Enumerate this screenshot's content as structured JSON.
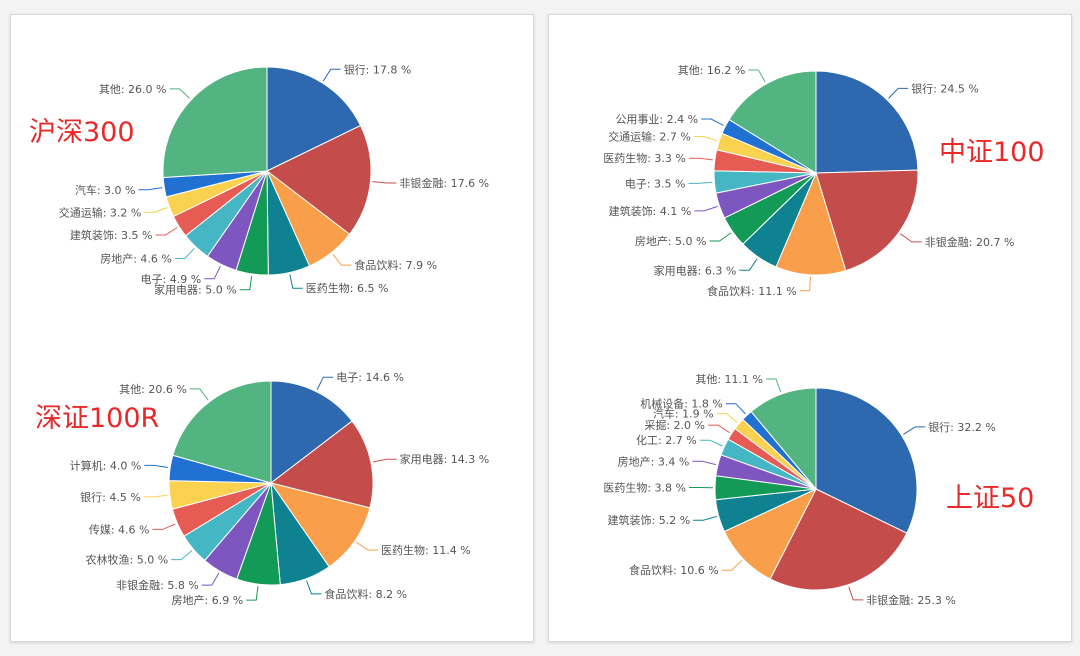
{
  "colors": [
    "#2e69b0",
    "#c44d4b",
    "#f99f4b",
    "#0e8291",
    "#139a56",
    "#7d56c0",
    "#45b6c4",
    "#e65c55",
    "#fbd150",
    "#2171d3"
  ],
  "other_color": "#52b481",
  "chart_data": [
    {
      "type": "pie",
      "title": "沪深300",
      "labels": [
        "银行",
        "非银金融",
        "食品饮料",
        "医药生物",
        "家用电器",
        "电子",
        "房地产",
        "建筑装饰",
        "交通运输",
        "汽车",
        "其他"
      ],
      "values": [
        17.8,
        17.6,
        7.9,
        6.5,
        5.0,
        4.9,
        4.6,
        3.5,
        3.2,
        3.0,
        26.0
      ],
      "value_labels": [
        "银行: 17.8 %",
        "非银金融: 17.6 %",
        "食品饮料: 7.9 %",
        "医药生物: 6.5 %",
        "家用电器: 5.0 %",
        "电子: 4.9 %",
        "房地产: 4.6 %",
        "建筑装饰: 3.5 %",
        "交通运输: 3.2 %",
        "汽车: 3.0 %",
        "其他: 26.0 %"
      ]
    },
    {
      "type": "pie",
      "title": "中证100",
      "labels": [
        "银行",
        "非银金融",
        "食品饮料",
        "家用电器",
        "房地产",
        "建筑装饰",
        "电子",
        "医药生物",
        "交通运输",
        "公用事业",
        "其他"
      ],
      "values": [
        24.5,
        20.7,
        11.1,
        6.3,
        5.0,
        4.1,
        3.5,
        3.3,
        2.7,
        2.4,
        16.2
      ],
      "value_labels": [
        "银行: 24.5 %",
        "非银金融: 20.7 %",
        "食品饮料: 11.1 %",
        "家用电器: 6.3 %",
        "房地产: 5.0 %",
        "建筑装饰: 4.1 %",
        "电子: 3.5 %",
        "医药生物: 3.3 %",
        "交通运输: 2.7 %",
        "公用事业: 2.4 %",
        "其他: 16.2 %"
      ]
    },
    {
      "type": "pie",
      "title": "深证100R",
      "labels": [
        "电子",
        "家用电器",
        "医药生物",
        "食品饮料",
        "房地产",
        "非银金融",
        "农林牧渔",
        "传媒",
        "银行",
        "计算机",
        "其他"
      ],
      "values": [
        14.6,
        14.3,
        11.4,
        8.2,
        6.9,
        5.8,
        5.0,
        4.6,
        4.5,
        4.0,
        20.6
      ],
      "value_labels": [
        "电子: 14.6 %",
        "家用电器: 14.3 %",
        "医药生物: 11.4 %",
        "食品饮料: 8.2 %",
        "房地产: 6.9 %",
        "非银金融: 5.8 %",
        "农林牧渔: 5.0 %",
        "传媒: 4.6 %",
        "银行: 4.5 %",
        "计算机: 4.0 %",
        "其他: 20.6 %"
      ]
    },
    {
      "type": "pie",
      "title": "上证50",
      "labels": [
        "银行",
        "非银金融",
        "食品饮料",
        "建筑装饰",
        "医药生物",
        "房地产",
        "化工",
        "采掘",
        "汽车",
        "机械设备",
        "其他"
      ],
      "values": [
        32.2,
        25.3,
        10.6,
        5.2,
        3.8,
        3.4,
        2.7,
        2.0,
        1.9,
        1.8,
        11.1
      ],
      "value_labels": [
        "银行: 32.2 %",
        "非银金融: 25.3 %",
        "食品饮料: 10.6 %",
        "建筑装饰: 5.2 %",
        "医药生物: 3.8 %",
        "房地产: 3.4 %",
        "化工: 2.7 %",
        "采掘: 2.0 %",
        "汽车: 1.9 %",
        "机械设备: 1.8 %",
        "其他: 11.1 %"
      ]
    }
  ]
}
